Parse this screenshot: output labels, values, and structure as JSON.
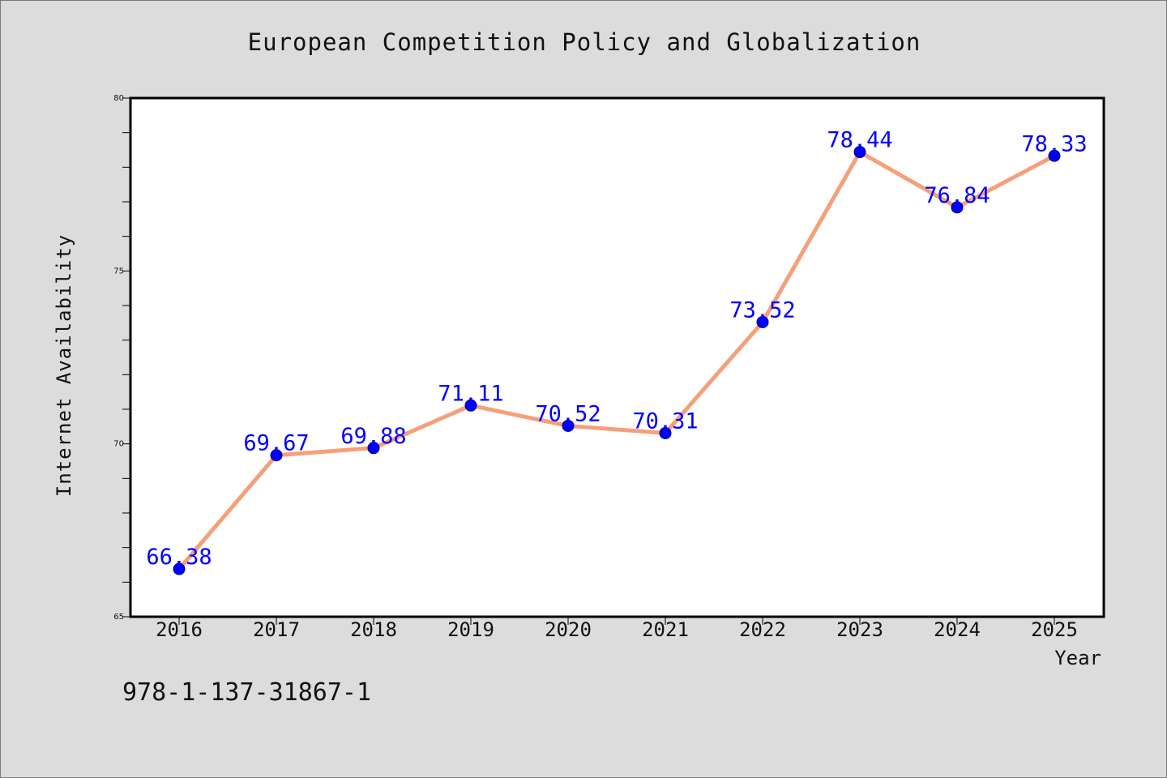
{
  "chart_data": {
    "type": "line",
    "title": "European Competition Policy and Globalization",
    "xlabel": "Year",
    "ylabel": "Internet Availability",
    "x": [
      "2016",
      "2017",
      "2018",
      "2019",
      "2020",
      "2021",
      "2022",
      "2023",
      "2024",
      "2025"
    ],
    "series": [
      {
        "values": [
          66.38,
          69.67,
          69.88,
          71.11,
          70.52,
          70.31,
          73.52,
          78.44,
          76.84,
          78.33
        ],
        "data_labels": [
          "66.38",
          "69.67",
          "69.88",
          "71.11",
          "70.52",
          "70.31",
          "73.52",
          "78.44",
          "76.84",
          "78.33"
        ]
      }
    ],
    "ylim": [
      65,
      80
    ],
    "y_ticks": [
      "65",
      "70",
      "75",
      "80"
    ],
    "grid": false,
    "colors": {
      "line": "#f5a07a",
      "marker": "#0000ff",
      "data_label": "#0000ff",
      "background": "#dcdcdc",
      "plot_area": "#ffffff"
    }
  },
  "footer": {
    "isbn": "978-1-137-31867-1"
  }
}
